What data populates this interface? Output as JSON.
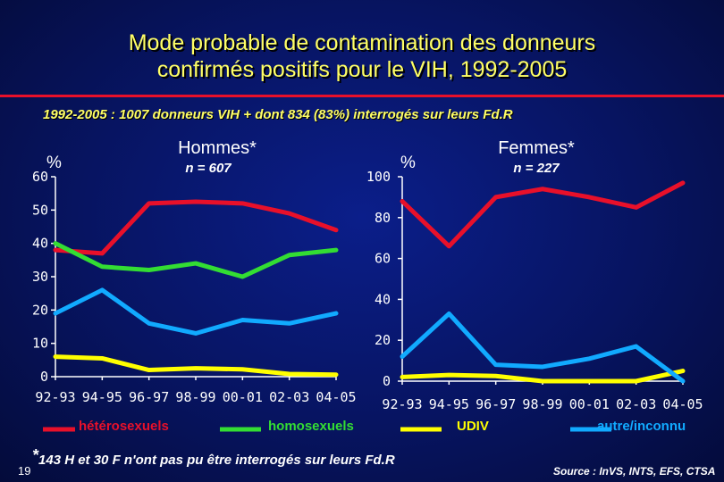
{
  "title_line1": "Mode probable de contamination des donneurs",
  "title_line2": "confirmés positifs pour le VIH, 1992-2005",
  "subtitle": "1992-2005 : 1007 donneurs VIH + dont 834 (83%) interrogés sur leurs Fd.R",
  "footnote_star": "*",
  "footnote_text": "143 H et 30 F n'ont pas pu être interrogés sur leurs Fd.R",
  "page_number": "19",
  "source": "Source : InVS, INTS, EFS, CTSA",
  "legend": [
    {
      "label": "hétérosexuels",
      "color": "#e8102a"
    },
    {
      "label": "homosexuels",
      "color": "#33dd33"
    },
    {
      "label": "UDIV",
      "color": "#ffff00"
    },
    {
      "label": "autre/inconnu",
      "color": "#11aaff"
    }
  ],
  "chart_data": [
    {
      "type": "line",
      "title": "Hommes*",
      "subtitle": "n = 607",
      "ylabel": "%",
      "categories": [
        "92-93",
        "94-95",
        "96-97",
        "98-99",
        "00-01",
        "02-03",
        "04-05"
      ],
      "ylim": [
        0,
        60
      ],
      "yticks": [
        0,
        10,
        20,
        30,
        40,
        50,
        60
      ],
      "series": [
        {
          "name": "hétérosexuels",
          "color": "#e8102a",
          "values": [
            38,
            37,
            52,
            52.5,
            52,
            49,
            44
          ]
        },
        {
          "name": "homosexuels",
          "color": "#33dd33",
          "values": [
            40,
            33,
            32,
            34,
            30,
            36.5,
            38
          ]
        },
        {
          "name": "UDIV",
          "color": "#ffff00",
          "values": [
            6,
            5.5,
            2,
            2.5,
            2.2,
            0.8,
            0.6
          ]
        },
        {
          "name": "autre/inconnu",
          "color": "#11aaff",
          "values": [
            19,
            26,
            16,
            13,
            17,
            16,
            19
          ]
        }
      ]
    },
    {
      "type": "line",
      "title": "Femmes*",
      "subtitle": "n = 227",
      "ylabel": "%",
      "categories": [
        "92-93",
        "94-95",
        "96-97",
        "98-99",
        "00-01",
        "02-03",
        "04-05"
      ],
      "ylim": [
        0,
        100
      ],
      "yticks": [
        0,
        20,
        40,
        60,
        80,
        100
      ],
      "series": [
        {
          "name": "hétérosexuels",
          "color": "#e8102a",
          "values": [
            88,
            66,
            90,
            94,
            90,
            85,
            97
          ]
        },
        {
          "name": "UDIV",
          "color": "#ffff00",
          "values": [
            2,
            3,
            2.5,
            0,
            0,
            0,
            5
          ]
        },
        {
          "name": "autre/inconnu",
          "color": "#11aaff",
          "values": [
            12,
            33,
            8,
            7,
            11,
            17,
            0
          ]
        }
      ]
    }
  ]
}
